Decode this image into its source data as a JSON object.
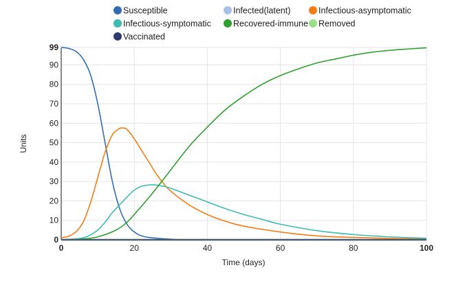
{
  "chart_data": {
    "type": "line",
    "xlabel": "Time (days)",
    "ylabel": "Units",
    "xlim": [
      0,
      100
    ],
    "ylim": [
      0,
      99
    ],
    "xticks": [
      0,
      20,
      40,
      60,
      80,
      100
    ],
    "yticks": [
      0,
      10,
      20,
      30,
      40,
      50,
      60,
      70,
      80,
      90,
      99
    ],
    "grid": true,
    "legend_placement": "top",
    "legend": [
      {
        "name": "Susceptible",
        "color": "#2f6db5"
      },
      {
        "name": "Infected(latent)",
        "color": "#a9c1e6"
      },
      {
        "name": "Infectious-asymptomatic",
        "color": "#f57c12"
      },
      {
        "name": "Infectious-symptomatic",
        "color": "#3cbcb0"
      },
      {
        "name": "Recovered-immune",
        "color": "#2ca02c"
      },
      {
        "name": "Removed",
        "color": "#98df8a"
      },
      {
        "name": "Vaccinated",
        "color": "#2c3a70"
      }
    ],
    "series": [
      {
        "name": "Susceptible",
        "color": "#2f6db5",
        "x": [
          0,
          2,
          4,
          6,
          8,
          10,
          12,
          14,
          16,
          18,
          20,
          22,
          25,
          30,
          40,
          100
        ],
        "y": [
          99,
          98.5,
          97,
          93,
          85,
          70,
          50,
          30,
          16,
          8,
          4,
          2,
          1,
          0.3,
          0,
          0
        ]
      },
      {
        "name": "Infectious-asymptomatic",
        "color": "#f57c12",
        "x": [
          0,
          2,
          4,
          6,
          8,
          10,
          12,
          14,
          16,
          17,
          18,
          20,
          22,
          24,
          26,
          28,
          30,
          35,
          40,
          45,
          50,
          60,
          70,
          80,
          90,
          100
        ],
        "y": [
          1,
          1.8,
          4,
          9,
          19,
          32,
          45,
          54,
          57.3,
          57.5,
          56.8,
          52,
          46,
          40,
          34,
          29,
          25,
          18,
          13,
          9.5,
          7,
          4,
          2,
          1.2,
          0.7,
          0.4
        ]
      },
      {
        "name": "Infectious-symptomatic",
        "color": "#3cbcb0",
        "x": [
          0,
          4,
          6,
          8,
          10,
          12,
          14,
          16,
          18,
          20,
          22,
          25,
          28,
          30,
          35,
          40,
          45,
          50,
          55,
          60,
          70,
          80,
          90,
          100
        ],
        "y": [
          0,
          0.5,
          1,
          2.5,
          5,
          9,
          14,
          18,
          22,
          25.5,
          27.5,
          28.3,
          27.5,
          26.5,
          23,
          19.5,
          16,
          13,
          10.5,
          8,
          4.7,
          2.7,
          1.5,
          0.8
        ]
      },
      {
        "name": "Recovered-immune",
        "color": "#2ca02c",
        "x": [
          0,
          5,
          10,
          15,
          18,
          20,
          25,
          30,
          35,
          40,
          45,
          50,
          55,
          60,
          65,
          70,
          75,
          80,
          85,
          90,
          95,
          100
        ],
        "y": [
          0,
          0.2,
          1.5,
          5,
          9,
          13,
          24,
          36,
          48,
          58,
          67,
          74,
          80,
          84.5,
          88,
          91,
          93,
          95,
          96.5,
          97.5,
          98.2,
          98.8
        ]
      }
    ]
  }
}
